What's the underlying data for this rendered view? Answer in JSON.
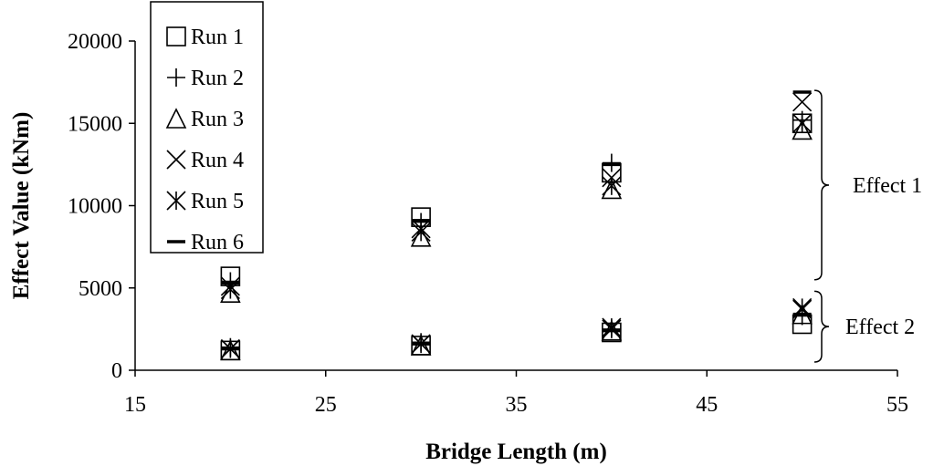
{
  "chart_data": {
    "type": "scatter",
    "title": "",
    "xlabel": "Bridge Length (m)",
    "ylabel": "Effect Value (kNm)",
    "xlim": [
      15,
      55
    ],
    "ylim": [
      0,
      20000
    ],
    "xticks": [
      "15",
      "25",
      "35",
      "45",
      "55"
    ],
    "yticks": [
      "0",
      "5000",
      "10000",
      "15000",
      "20000"
    ],
    "grid": false,
    "legend_position": "top-left",
    "series": [
      {
        "name": "Run 1",
        "marker": "square",
        "points": [
          {
            "x": 20,
            "y": 5700
          },
          {
            "x": 30,
            "y": 9300
          },
          {
            "x": 40,
            "y": 12000
          },
          {
            "x": 50,
            "y": 15000
          },
          {
            "x": 20,
            "y": 1200
          },
          {
            "x": 30,
            "y": 1500
          },
          {
            "x": 40,
            "y": 2300
          },
          {
            "x": 50,
            "y": 2800
          }
        ]
      },
      {
        "name": "Run 2",
        "marker": "plus",
        "points": [
          {
            "x": 20,
            "y": 5400
          },
          {
            "x": 30,
            "y": 9000
          },
          {
            "x": 40,
            "y": 12600
          },
          {
            "x": 50,
            "y": 15200
          },
          {
            "x": 20,
            "y": 1400
          },
          {
            "x": 30,
            "y": 1700
          },
          {
            "x": 40,
            "y": 2500
          },
          {
            "x": 50,
            "y": 3300
          }
        ]
      },
      {
        "name": "Run 3",
        "marker": "triangle",
        "points": [
          {
            "x": 20,
            "y": 4700
          },
          {
            "x": 30,
            "y": 8100
          },
          {
            "x": 40,
            "y": 11000
          },
          {
            "x": 50,
            "y": 14600
          },
          {
            "x": 20,
            "y": 1200
          },
          {
            "x": 30,
            "y": 1500
          },
          {
            "x": 40,
            "y": 2400
          },
          {
            "x": 50,
            "y": 3400
          }
        ]
      },
      {
        "name": "Run 4",
        "marker": "x",
        "points": [
          {
            "x": 20,
            "y": 5100
          },
          {
            "x": 30,
            "y": 8600
          },
          {
            "x": 40,
            "y": 11700
          },
          {
            "x": 50,
            "y": 16300
          },
          {
            "x": 20,
            "y": 1300
          },
          {
            "x": 30,
            "y": 1600
          },
          {
            "x": 40,
            "y": 2500
          },
          {
            "x": 50,
            "y": 3700
          }
        ]
      },
      {
        "name": "Run 5",
        "marker": "asterisk",
        "points": [
          {
            "x": 20,
            "y": 4900
          },
          {
            "x": 30,
            "y": 8400
          },
          {
            "x": 40,
            "y": 11200
          },
          {
            "x": 50,
            "y": 15000
          },
          {
            "x": 20,
            "y": 1300
          },
          {
            "x": 30,
            "y": 1600
          },
          {
            "x": 40,
            "y": 2600
          },
          {
            "x": 50,
            "y": 3800
          }
        ]
      },
      {
        "name": "Run 6",
        "marker": "dash",
        "points": [
          {
            "x": 20,
            "y": 5300
          },
          {
            "x": 30,
            "y": 9100
          },
          {
            "x": 40,
            "y": 12500
          },
          {
            "x": 50,
            "y": 16900
          },
          {
            "x": 20,
            "y": 1300
          },
          {
            "x": 30,
            "y": 1600
          },
          {
            "x": 40,
            "y": 2400
          },
          {
            "x": 50,
            "y": 3400
          }
        ]
      }
    ],
    "annotations": [
      {
        "label": "Effect 1",
        "y_from": 5500,
        "y_to": 17000
      },
      {
        "label": "Effect 2",
        "y_from": 500,
        "y_to": 4800
      }
    ]
  }
}
